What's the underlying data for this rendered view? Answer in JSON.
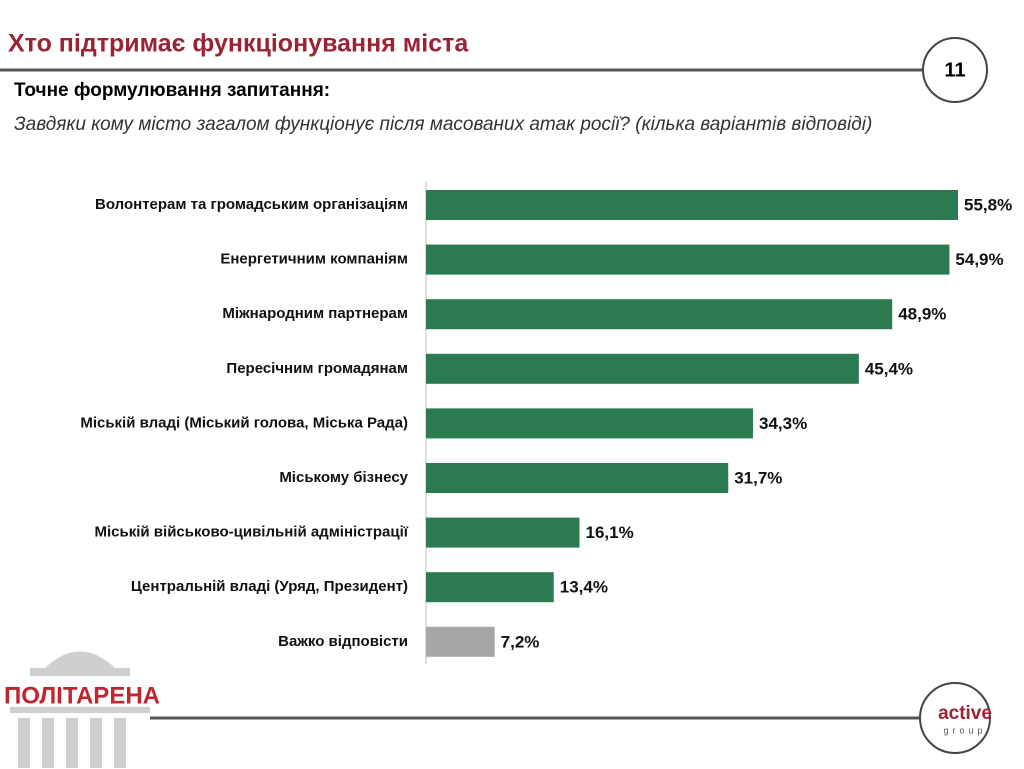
{
  "header": {
    "title": "Хто підтримає функціонування міста",
    "page_number": "11"
  },
  "question": {
    "label": "Точне формулювання запитання:",
    "text": "Завдяки кому місто загалом функціонує після масованих атак росії? (кілька варіантів відповіді)"
  },
  "logos": {
    "left": "ПОЛІТАРЕНА",
    "right_top": "active",
    "right_bottom": "group"
  },
  "chart_data": {
    "type": "hbar",
    "categories": [
      "Волонтерам та громадським організаціям",
      "Енергетичним компаніям",
      "Міжнародним партнерам",
      "Пересічним громадянам",
      "Міській владі (Міський голова, Міська Рада)",
      "Міському бізнесу",
      "Міській військово-цивільній адміністрації",
      "Центральній владі (Уряд, Президент)",
      "Важко відповісти"
    ],
    "values": [
      55.8,
      54.9,
      48.9,
      45.4,
      34.3,
      31.7,
      16.1,
      13.4,
      7.2
    ],
    "value_labels": [
      "55,8%",
      "54,9%",
      "48,9%",
      "45,4%",
      "34,3%",
      "31,7%",
      "16,1%",
      "13,4%",
      "7,2%"
    ],
    "colors": [
      "#2c7a50",
      "#2c7a50",
      "#2c7a50",
      "#2c7a50",
      "#2c7a50",
      "#2c7a50",
      "#2c7a50",
      "#2c7a50",
      "#a6a6a6"
    ]
  }
}
